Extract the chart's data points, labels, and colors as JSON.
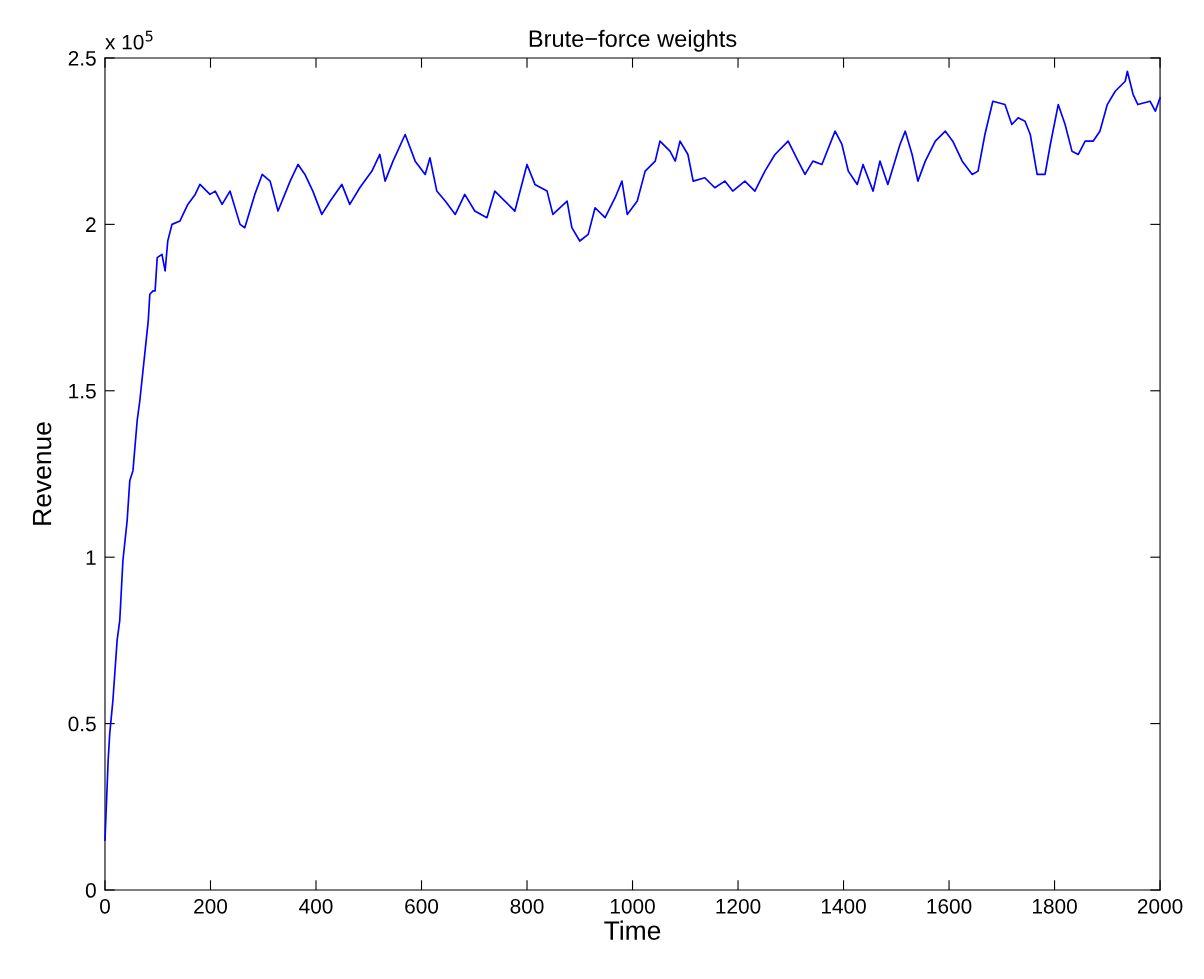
{
  "chart_data": {
    "type": "line",
    "title": "Brute−force weights",
    "xlabel": "Time",
    "ylabel": "Revenue",
    "annotations": [
      "x 10$^{5}$"
    ],
    "xlim": [
      0,
      2000
    ],
    "xticks": [
      0,
      200,
      400,
      600,
      800,
      1000,
      1200,
      1400,
      1600,
      1800,
      2000
    ],
    "ylim": [
      0,
      2.5
    ],
    "yticks": [
      0,
      0.5,
      1,
      1.5,
      2,
      2.5
    ],
    "grid": false,
    "legend": false,
    "marker": "none",
    "line_style": "solid",
    "series": [
      {
        "color": "#0000ff",
        "x": [
          0,
          6,
          9,
          15,
          23,
          28,
          34,
          42,
          47,
          53,
          61,
          66,
          76,
          82,
          85,
          91,
          95,
          99,
          108,
          114,
          119,
          127,
          142,
          157,
          171,
          180,
          199,
          209,
          222,
          237,
          256,
          265,
          284,
          298,
          313,
          328,
          351,
          366,
          379,
          394,
          411,
          427,
          449,
          464,
          483,
          506,
          521,
          531,
          546,
          569,
          588,
          607,
          616,
          629,
          645,
          664,
          682,
          701,
          724,
          739,
          758,
          777,
          800,
          815,
          838,
          849,
          876,
          885,
          900,
          916,
          929,
          948,
          967,
          980,
          990,
          1009,
          1024,
          1043,
          1052,
          1071,
          1081,
          1090,
          1105,
          1115,
          1137,
          1156,
          1175,
          1190,
          1213,
          1232,
          1251,
          1270,
          1295,
          1314,
          1327,
          1342,
          1359,
          1384,
          1397,
          1409,
          1426,
          1437,
          1456,
          1469,
          1484,
          1507,
          1517,
          1530,
          1541,
          1555,
          1574,
          1593,
          1607,
          1625,
          1644,
          1655,
          1668,
          1683,
          1706,
          1719,
          1731,
          1744,
          1754,
          1767,
          1782,
          1792,
          1807,
          1820,
          1833,
          1845,
          1858,
          1873,
          1886,
          1900,
          1915,
          1934,
          1938,
          1949,
          1958,
          1981,
          1991,
          2000
        ],
        "values": [
          0.15,
          0.39,
          0.47,
          0.57,
          0.75,
          0.81,
          0.99,
          1.11,
          1.23,
          1.26,
          1.41,
          1.47,
          1.62,
          1.71,
          1.79,
          1.8,
          1.8,
          1.9,
          1.91,
          1.86,
          1.95,
          2.0,
          2.01,
          2.06,
          2.09,
          2.12,
          2.09,
          2.1,
          2.06,
          2.1,
          2.0,
          1.99,
          2.09,
          2.15,
          2.13,
          2.04,
          2.13,
          2.18,
          2.15,
          2.1,
          2.03,
          2.07,
          2.12,
          2.06,
          2.11,
          2.16,
          2.21,
          2.13,
          2.19,
          2.27,
          2.19,
          2.15,
          2.2,
          2.1,
          2.07,
          2.03,
          2.09,
          2.04,
          2.02,
          2.1,
          2.07,
          2.04,
          2.18,
          2.12,
          2.1,
          2.03,
          2.07,
          1.99,
          1.95,
          1.97,
          2.05,
          2.02,
          2.08,
          2.13,
          2.03,
          2.07,
          2.16,
          2.19,
          2.25,
          2.22,
          2.19,
          2.25,
          2.21,
          2.13,
          2.14,
          2.11,
          2.13,
          2.1,
          2.13,
          2.1,
          2.16,
          2.21,
          2.25,
          2.19,
          2.15,
          2.19,
          2.18,
          2.28,
          2.24,
          2.16,
          2.12,
          2.18,
          2.1,
          2.19,
          2.12,
          2.24,
          2.28,
          2.21,
          2.13,
          2.19,
          2.25,
          2.28,
          2.25,
          2.19,
          2.15,
          2.16,
          2.27,
          2.37,
          2.36,
          2.3,
          2.32,
          2.31,
          2.27,
          2.15,
          2.15,
          2.24,
          2.36,
          2.3,
          2.22,
          2.21,
          2.25,
          2.25,
          2.28,
          2.36,
          2.4,
          2.43,
          2.46,
          2.39,
          2.36,
          2.37,
          2.34,
          2.38
        ]
      }
    ]
  }
}
